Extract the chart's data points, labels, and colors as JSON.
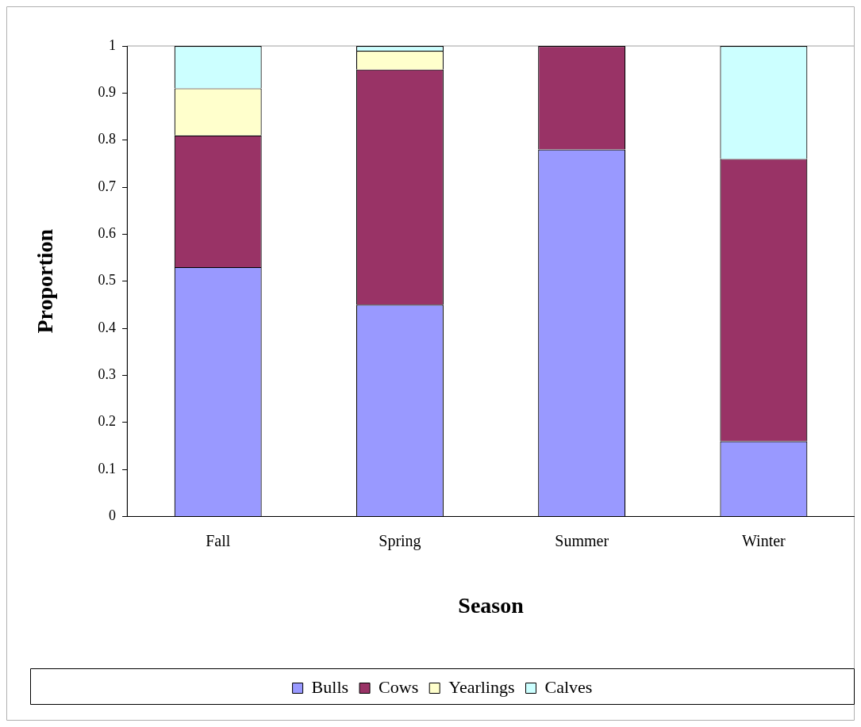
{
  "chart_data": {
    "type": "bar",
    "stacked": true,
    "xlabel": "Season",
    "ylabel": "Proportion",
    "categories": [
      "Fall",
      "Spring",
      "Summer",
      "Winter"
    ],
    "series": [
      {
        "name": "Bulls",
        "color": "#9999ff",
        "values": [
          0.53,
          0.45,
          0.78,
          0.16
        ]
      },
      {
        "name": "Cows",
        "color": "#993366",
        "values": [
          0.28,
          0.5,
          0.22,
          0.6
        ]
      },
      {
        "name": "Yearlings",
        "color": "#ffffcc",
        "values": [
          0.1,
          0.04,
          0,
          0
        ]
      },
      {
        "name": "Calves",
        "color": "#ccffff",
        "values": [
          0.09,
          0.01,
          0,
          0.24
        ]
      }
    ],
    "ylim": [
      0,
      1
    ],
    "yticks": [
      0,
      0.1,
      0.2,
      0.3,
      0.4,
      0.5,
      0.6,
      0.7,
      0.8,
      0.9,
      1
    ],
    "grid": false,
    "legend": "bottom"
  }
}
